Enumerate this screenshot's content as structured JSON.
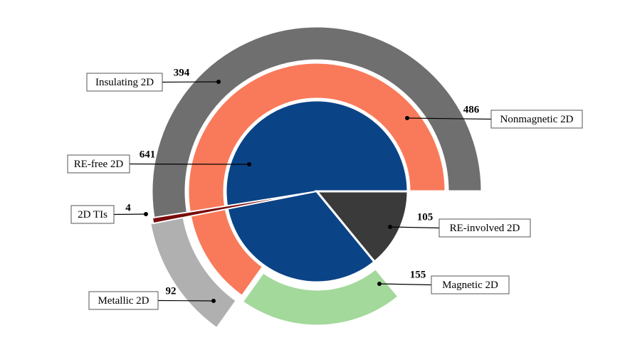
{
  "chart_data": {
    "type": "sunburst",
    "inner": {
      "categories": [
        "RE-free 2D",
        "RE-involved 2D"
      ],
      "values": [
        641,
        105
      ],
      "colors": [
        "#0b4387",
        "#3a3a3a"
      ]
    },
    "middle": {
      "categories": [
        "Nonmagnetic 2D",
        "Magnetic 2D"
      ],
      "values": [
        486,
        155
      ],
      "colors": [
        "#f97a5a",
        "#a3d99b"
      ]
    },
    "outer": {
      "categories": [
        "Insulating 2D",
        "Metallic 2D"
      ],
      "values": [
        394,
        92
      ],
      "colors": [
        "#6f6f6f",
        "#b0b0b0"
      ]
    },
    "highlight": {
      "name": "2D TIs",
      "value": 4,
      "color": "#7b0a0a"
    }
  }
}
